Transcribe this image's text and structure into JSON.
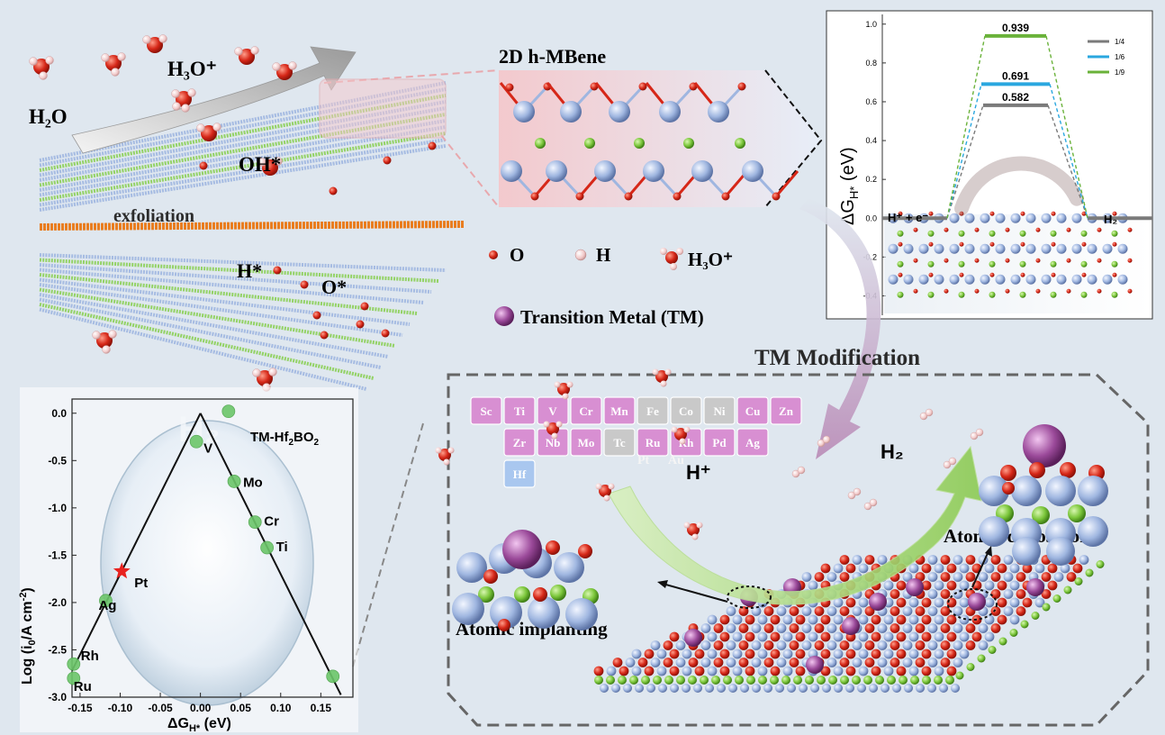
{
  "colors": {
    "background": "#dfe7ef",
    "oxygen": "#d62718",
    "hydrogen": "#f2c9c9",
    "boron": "#7bc63b",
    "hafnium": "#9fb6e0",
    "transition_metal": "#9b4a9a",
    "tm_cell": "#d88fd2",
    "tm_cell_gray": "#c9c9c9",
    "hf_cell": "#a9c7ef",
    "green_arrow": "#9bd36a",
    "pink_arrow": "#b98ab6"
  },
  "scene": {
    "h2o": "H₂O",
    "h3o_plus": "H₃O⁺",
    "oh_star": "OH*",
    "exfoliation": "exfoliation",
    "h_star": "H*",
    "o_star": "O*"
  },
  "mbene": {
    "title": "2D h-MBene"
  },
  "legend": {
    "o": "O",
    "h": "H",
    "h3o": "H₃O⁺",
    "tm": "Transition Metal (TM)"
  },
  "tm_section": {
    "title": "TM Modification",
    "h_plus": "H⁺",
    "h2": "H₂",
    "atomic_deposition": "Atomic deposition",
    "atomic_implanting": "Atomic implanting",
    "periodic_row1": [
      "Sc",
      "Ti",
      "V",
      "Cr",
      "Mn",
      "Fe",
      "Co",
      "Ni",
      "Cu",
      "Zn"
    ],
    "periodic_row1_gray": [
      false,
      false,
      false,
      false,
      false,
      true,
      true,
      true,
      false,
      false
    ],
    "periodic_row2": [
      "Zr",
      "Nb",
      "Mo",
      "Tc",
      "Ru",
      "Rh",
      "Pd",
      "Ag"
    ],
    "periodic_row2_gray": [
      false,
      false,
      false,
      true,
      false,
      false,
      false,
      false
    ],
    "periodic_row3": [
      "Hf"
    ],
    "faint_pt": "Pt",
    "faint_au": "Au"
  },
  "chart_data": [
    {
      "type": "line",
      "ylabel": "ΔG",
      "ylabel_sub": "H*",
      "ylabel_unit": " (eV)",
      "ylim": [
        -0.5,
        1.05
      ],
      "yticks": [
        "1.0",
        "0.8",
        "0.6",
        "0.4",
        "0.2",
        "0.0",
        "-0.2",
        "-0.4"
      ],
      "ytick_values": [
        1.0,
        0.8,
        0.6,
        0.4,
        0.2,
        0.0,
        -0.2,
        -0.4
      ],
      "left_label": "H⁺ + e⁻",
      "right_label": "H₂",
      "series": [
        {
          "name": "1/4",
          "value": 0.582,
          "label": "0.582",
          "color": "#7a7a7a"
        },
        {
          "name": "1/6",
          "value": 0.691,
          "label": "0.691",
          "color": "#2aa7df"
        },
        {
          "name": "1/9",
          "value": 0.939,
          "label": "0.939",
          "color": "#6ab23a"
        }
      ]
    },
    {
      "type": "scatter",
      "xlabel": "ΔG",
      "xlabel_sub": "H*",
      "xlabel_unit": " (eV)",
      "ylabel": "Log (i",
      "ylabel_sub": "0",
      "ylabel_unit": "/A cm",
      "ylabel_sup": "-2",
      "ylabel_end": ")",
      "xlim": [
        -0.16,
        0.19
      ],
      "ylim": [
        -3.0,
        0.15
      ],
      "xticks": [
        "-0.15",
        "-0.10",
        "-0.05",
        "0.00",
        "0.05",
        "0.10",
        "0.15"
      ],
      "xtick_values": [
        -0.15,
        -0.1,
        -0.05,
        0.0,
        0.05,
        0.1,
        0.15
      ],
      "yticks": [
        "0.0",
        "-0.5",
        "-1.0",
        "-1.5",
        "-2.0",
        "-2.5",
        "-3.0"
      ],
      "ytick_values": [
        0.0,
        -0.5,
        -1.0,
        -1.5,
        -2.0,
        -2.5,
        -3.0
      ],
      "legend_text": "TM-Hf",
      "legend_sub1": "2",
      "legend_mid": "BO",
      "legend_sub2": "2",
      "volcano": {
        "peak_x": 0.0,
        "peak_y": 0.0,
        "slope": 17.0
      },
      "points": [
        {
          "label": "V",
          "x": -0.005,
          "y": -0.3
        },
        {
          "label": "",
          "x": 0.035,
          "y": 0.02
        },
        {
          "label": "Mo",
          "x": 0.042,
          "y": -0.72
        },
        {
          "label": "Cr",
          "x": 0.068,
          "y": -1.15
        },
        {
          "label": "Ti",
          "x": 0.083,
          "y": -1.42
        },
        {
          "label": "Ag",
          "x": -0.118,
          "y": -1.98
        },
        {
          "label": "Rh",
          "x": -0.158,
          "y": -2.65
        },
        {
          "label": "Ru",
          "x": -0.158,
          "y": -2.8
        },
        {
          "label": "",
          "x": 0.165,
          "y": -2.78
        }
      ],
      "star": {
        "label": "Pt",
        "x": -0.098,
        "y": -1.67,
        "color": "#e8221f"
      }
    }
  ]
}
